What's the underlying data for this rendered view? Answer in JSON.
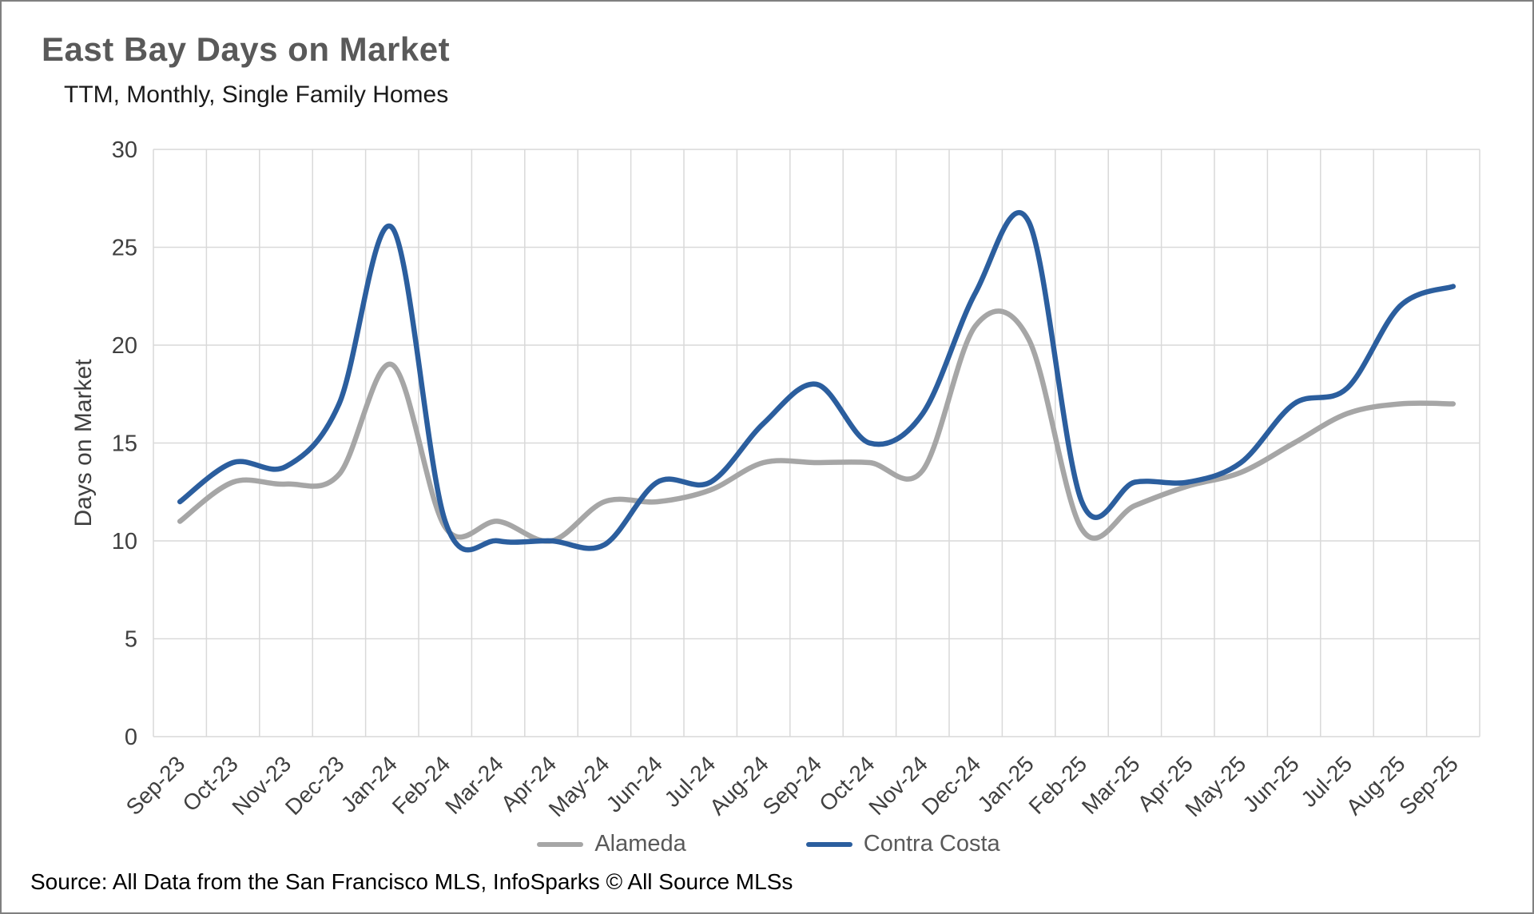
{
  "header": {
    "title": "East Bay Days on Market",
    "subtitle": "TTM, Monthly, Single Family Homes"
  },
  "footer": {
    "source": "Source: All Data from the San Francisco MLS, InfoSparks © All Source MLSs"
  },
  "chart_data": {
    "type": "line",
    "title": "East Bay Days on Market",
    "subtitle": "TTM, Monthly, Single Family Homes",
    "xlabel": "",
    "ylabel": "Days on Market",
    "ylim": [
      0,
      30
    ],
    "ytick_interval": 5,
    "yticks": [
      0,
      5,
      10,
      15,
      20,
      25,
      30
    ],
    "grid": true,
    "legend_position": "bottom",
    "categories": [
      "Sep-23",
      "Oct-23",
      "Nov-23",
      "Dec-23",
      "Jan-24",
      "Feb-24",
      "Mar-24",
      "Apr-24",
      "May-24",
      "Jun-24",
      "Jul-24",
      "Aug-24",
      "Sep-24",
      "Oct-24",
      "Nov-24",
      "Dec-24",
      "Jan-25",
      "Feb-25",
      "Mar-25",
      "Apr-25",
      "May-25",
      "Jun-25",
      "Jul-25",
      "Aug-25",
      "Sep-25"
    ],
    "series": [
      {
        "name": "Alameda",
        "color": "#A6A6A6",
        "values": [
          11,
          13,
          12.9,
          13.4,
          19,
          10.7,
          11,
          10,
          12,
          12,
          12.6,
          14,
          14,
          14,
          13.6,
          21,
          20.3,
          10.6,
          11.8,
          12.8,
          13.5,
          15,
          16.5,
          17,
          17
        ]
      },
      {
        "name": "Contra Costa",
        "color": "#2B5E9E",
        "values": [
          12,
          14,
          13.8,
          17,
          26,
          11,
          10,
          10,
          9.8,
          13,
          13,
          16,
          18,
          15,
          16.5,
          22.7,
          26.3,
          12,
          13,
          13,
          14,
          17,
          17.8,
          22,
          23
        ]
      }
    ]
  }
}
